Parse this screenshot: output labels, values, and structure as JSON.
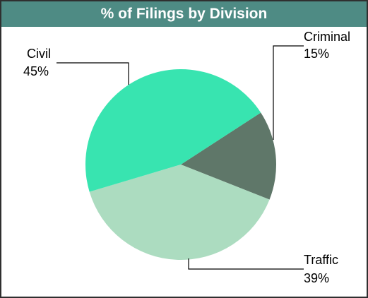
{
  "colors": {
    "title_bar_bg": "#4e8b84",
    "title_text": "#ffffff",
    "frame_border": "#2f2f2f"
  },
  "chart_data": {
    "type": "pie",
    "title": "% of Filings by Division",
    "slices": [
      {
        "label": "Criminal",
        "value_label": "15%",
        "value": 15,
        "color": "#5f7769"
      },
      {
        "label": "Traffic",
        "value_label": "39%",
        "value": 39,
        "color": "#acdcc0"
      },
      {
        "label": "Civil",
        "value_label": "45%",
        "value": 45,
        "color": "#38e4b0"
      }
    ],
    "legend": "none"
  }
}
